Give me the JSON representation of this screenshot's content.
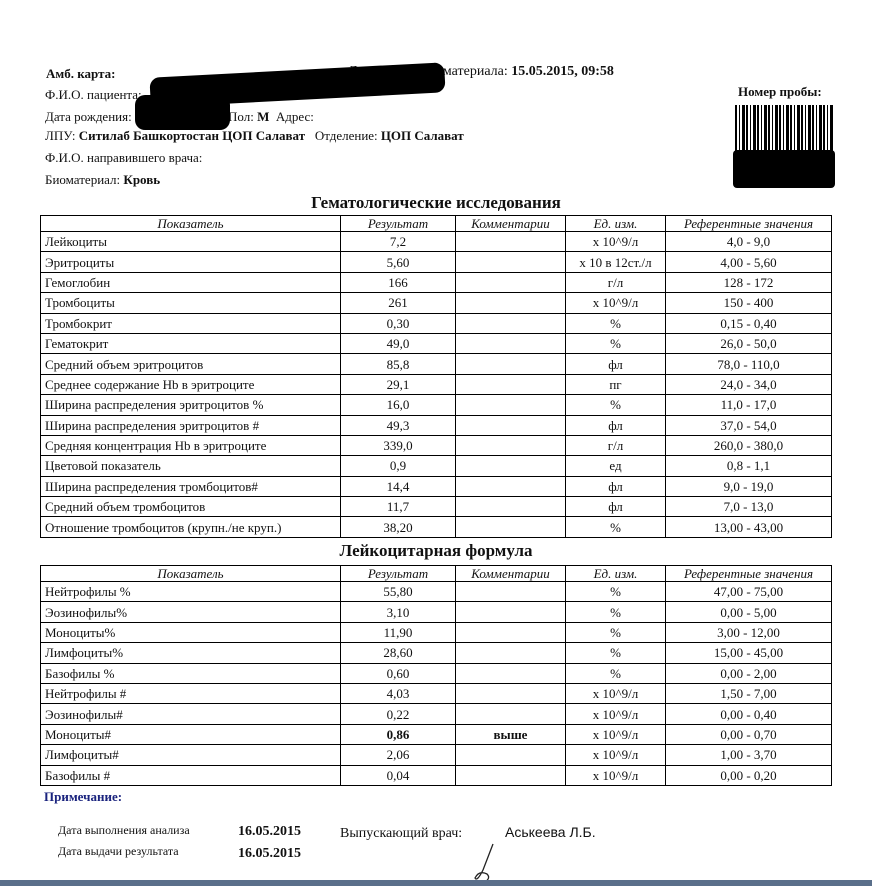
{
  "header": {
    "amb_card_label": "Амб. карта:",
    "sample_date_label": "Дата взятия биоматериала:",
    "sample_date_value": "15.05.2015, 09:58",
    "patient_label": "Ф.И.О. пациента:",
    "birth_label": "Дата рождения:",
    "sex_label": "Пол:",
    "sex_value": "М",
    "address_label": "Адрес:",
    "lpu_label": "ЛПУ:",
    "lpu_value": "Ситилаб Башкортостан ЦОП Салават",
    "dept_label": "Отделение:",
    "dept_value": "ЦОП Салават",
    "doctor_label": "Ф.И.О. направившего врача:",
    "biomaterial_label": "Биоматериал:",
    "biomaterial_value": "Кровь",
    "sample_number_label": "Номер пробы:"
  },
  "columns": [
    "Показатель",
    "Результат",
    "Комментарии",
    "Ед. изм.",
    "Референтные значения"
  ],
  "hematology": {
    "title": "Гематологические исследования",
    "rows": [
      [
        "Лейкоциты",
        "7,2",
        "",
        "x 10^9/л",
        "4,0 - 9,0"
      ],
      [
        "Эритроциты",
        "5,60",
        "",
        "x 10 в 12ст./л",
        "4,00 - 5,60"
      ],
      [
        "Гемоглобин",
        "166",
        "",
        "г/л",
        "128 - 172"
      ],
      [
        "Тромбоциты",
        "261",
        "",
        "x 10^9/л",
        "150 - 400"
      ],
      [
        "Тромбокрит",
        "0,30",
        "",
        "%",
        "0,15 - 0,40"
      ],
      [
        "Гематокрит",
        "49,0",
        "",
        "%",
        "26,0 - 50,0"
      ],
      [
        "Средний  объем эритроцитов",
        "85,8",
        "",
        "фл",
        "78,0 - 110,0"
      ],
      [
        "Среднее содержание Hb в эритроците",
        "29,1",
        "",
        "пг",
        "24,0 - 34,0"
      ],
      [
        "Ширина распределения эритроцитов %",
        "16,0",
        "",
        "%",
        "11,0 - 17,0"
      ],
      [
        "Ширина распределения эритроцитов #",
        "49,3",
        "",
        "фл",
        "37,0 - 54,0"
      ],
      [
        "Средняя концентрация Hb в эритроците",
        "339,0",
        "",
        "г/л",
        "260,0 - 380,0"
      ],
      [
        "Цветовой показатель",
        "0,9",
        "",
        "ед",
        "0,8 - 1,1"
      ],
      [
        "Ширина распределения тромбоцитов#",
        "14,4",
        "",
        "фл",
        "9,0 - 19,0"
      ],
      [
        "Средний объем тромбоцитов",
        "11,7",
        "",
        "фл",
        "7,0 - 13,0"
      ],
      [
        "Отношение тромбоцитов (крупн./не круп.)",
        "38,20",
        "",
        "%",
        "13,00 - 43,00"
      ]
    ]
  },
  "leukocyte": {
    "title": "Лейкоцитарная формула",
    "rows": [
      [
        "Нейтрофилы %",
        "55,80",
        "",
        "%",
        "47,00 - 75,00"
      ],
      [
        "Эозинофилы%",
        "3,10",
        "",
        "%",
        "0,00 - 5,00"
      ],
      [
        "Моноциты%",
        "11,90",
        "",
        "%",
        "3,00 - 12,00"
      ],
      [
        "Лимфоциты%",
        "28,60",
        "",
        "%",
        "15,00 - 45,00"
      ],
      [
        "Базофилы %",
        "0,60",
        "",
        "%",
        "0,00 - 2,00"
      ],
      [
        "Нейтрофилы #",
        "4,03",
        "",
        "x 10^9/л",
        "1,50 - 7,00"
      ],
      [
        "Эозинофилы#",
        "0,22",
        "",
        "x 10^9/л",
        "0,00 - 0,40"
      ],
      [
        "Моноциты#",
        "0,86",
        "выше",
        "x 10^9/л",
        "0,00 - 0,70"
      ],
      [
        "Лимфоциты#",
        "2,06",
        "",
        "x 10^9/л",
        "1,00 - 3,70"
      ],
      [
        "Базофилы #",
        "0,04",
        "",
        "x 10^9/л",
        "0,00 - 0,20"
      ]
    ],
    "flagged_row": 7
  },
  "footer": {
    "note_label": "Примечание:",
    "exec_date_label": "Дата выполнения анализа",
    "exec_date": "16.05.2015",
    "issue_date_label": "Дата выдачи результата",
    "issue_date": "16.05.2015",
    "doctor_label": "Выпускающий врач:",
    "doctor_name": "Аськеева Л.Б."
  }
}
